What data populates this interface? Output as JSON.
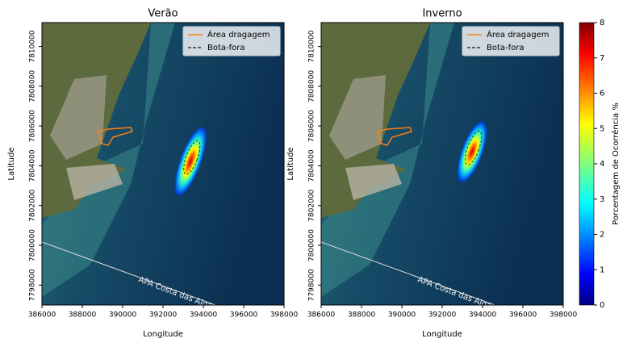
{
  "panels": [
    {
      "title": "Verão",
      "xlabel": "Longitude",
      "ylabel": "Latitude",
      "xlim": [
        386000,
        398000
      ],
      "ylim": [
        7797000,
        7811200
      ],
      "xticks": [
        386000,
        388000,
        390000,
        392000,
        394000,
        396000,
        398000
      ],
      "yticks": [
        7798000,
        7800000,
        7802000,
        7804000,
        7806000,
        7808000,
        7810000
      ],
      "legend": [
        {
          "name": "Área dragagem",
          "color": "#ff7f0e"
        },
        {
          "name": "Bota-fora",
          "color": "#333333"
        }
      ],
      "annotation": "APA Costa das Algas"
    },
    {
      "title": "Inverno",
      "xlabel": "Longitude",
      "ylabel": "Latitude",
      "xlim": [
        386000,
        398000
      ],
      "ylim": [
        7797000,
        7811200
      ],
      "xticks": [
        386000,
        388000,
        390000,
        392000,
        394000,
        396000,
        398000
      ],
      "yticks": [
        7798000,
        7800000,
        7802000,
        7804000,
        7806000,
        7808000,
        7810000
      ],
      "legend": [
        {
          "name": "Área dragagem",
          "color": "#ff7f0e"
        },
        {
          "name": "Bota-fora",
          "color": "#333333"
        }
      ],
      "annotation": "APA Costa das Algas"
    }
  ],
  "colorbar": {
    "label": "Porcentagem de Ocorrência %",
    "lim": [
      0,
      8
    ],
    "ticks": [
      0,
      1,
      2,
      3,
      4,
      5,
      6,
      7,
      8
    ]
  }
}
